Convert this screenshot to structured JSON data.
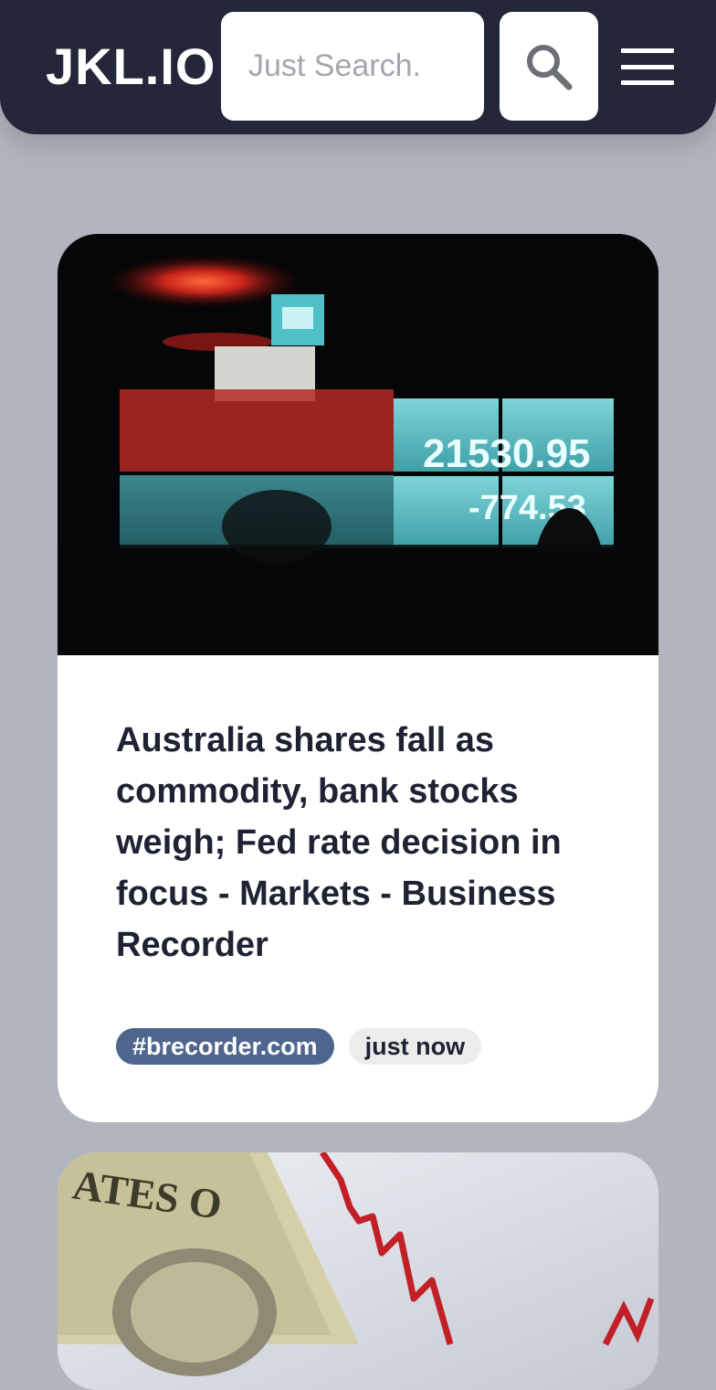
{
  "header": {
    "logo": "JKL.IO",
    "search_placeholder": "Just Search.",
    "search_icon": "search-icon",
    "menu_icon": "hamburger-menu-icon"
  },
  "articles": [
    {
      "title": "Australia shares fall as commodity, bank stocks weigh; Fed rate decision in focus - Markets - Business Recorder",
      "source_tag": "#brecorder.com",
      "time_tag": "just now",
      "image": {
        "ticker_value": "21530.95",
        "ticker_change": "-774.53"
      }
    },
    {
      "image": {
        "banknote_text": "ATES O"
      }
    }
  ],
  "colors": {
    "page_bg": "#b1b5bd",
    "header_bg": "#24273a",
    "source_tag_bg": "#4e658d",
    "time_tag_bg": "#ececec",
    "title_text": "#1e2233"
  }
}
